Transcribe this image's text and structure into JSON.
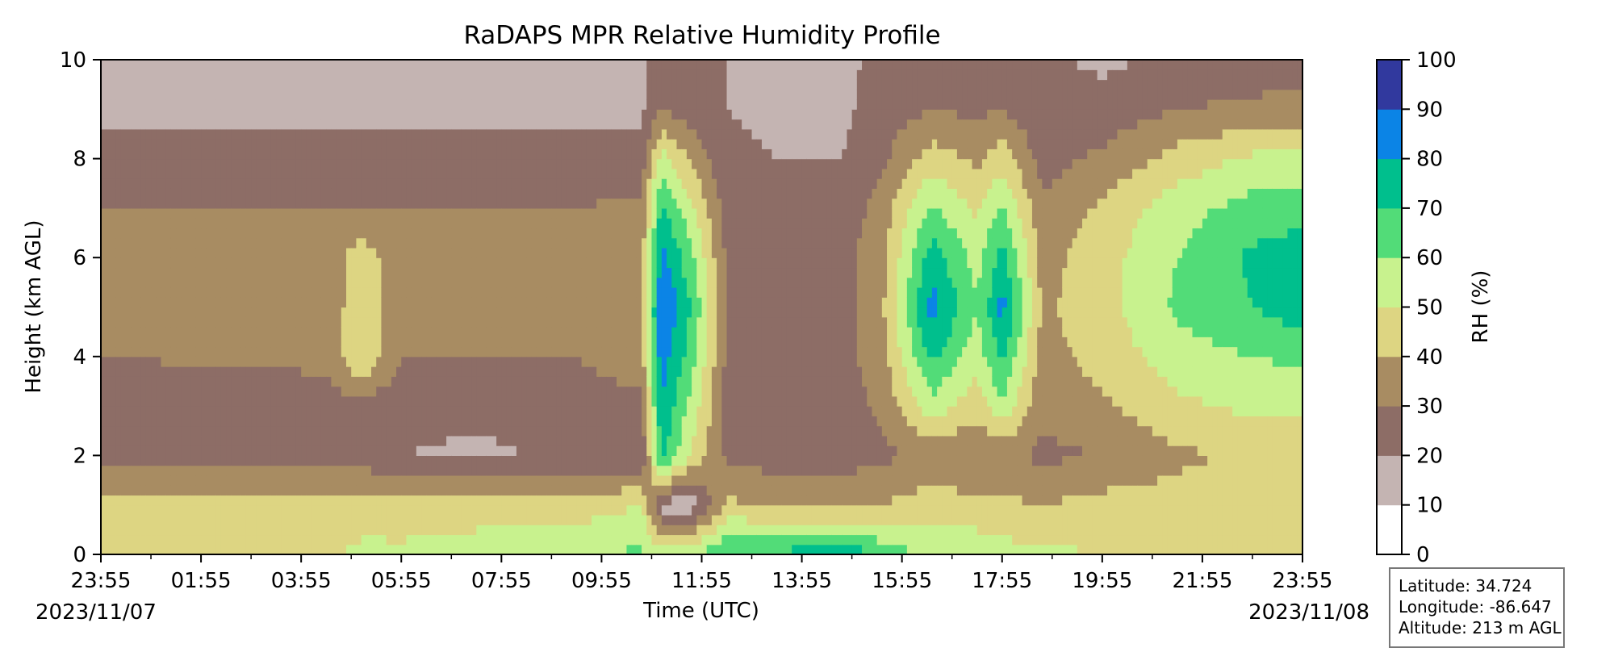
{
  "chart_data": {
    "type": "heatmap",
    "title": "RaDAPS MPR Relative Humidity Profile",
    "xlabel": "Time (UTC)",
    "ylabel": "Height (km AGL)",
    "x_ticks": [
      "23:55",
      "01:55",
      "03:55",
      "05:55",
      "07:55",
      "09:55",
      "11:55",
      "13:55",
      "15:55",
      "17:55",
      "19:55",
      "21:55",
      "23:55"
    ],
    "date_start": "2023/11/07",
    "date_end": "2023/11/08",
    "y_ticks": [
      "0",
      "2",
      "4",
      "6",
      "8",
      "10"
    ],
    "ylim": [
      0,
      10
    ],
    "colorbar": {
      "label": "RH (%)",
      "ticks": [
        "0",
        "10",
        "20",
        "30",
        "40",
        "50",
        "60",
        "70",
        "80",
        "90",
        "100"
      ],
      "levels": [
        0,
        10,
        20,
        30,
        40,
        50,
        60,
        70,
        80,
        90,
        100
      ],
      "colors": [
        "#ffffff",
        "#c4b4b2",
        "#8d6d66",
        "#a88c62",
        "#ddd582",
        "#c8f28e",
        "#52dc78",
        "#00bf8d",
        "#0b84e6",
        "#31399e"
      ]
    },
    "x_hours": [
      0,
      2,
      4,
      6,
      8,
      10,
      12,
      14,
      16,
      18,
      20,
      22,
      24
    ],
    "columns": [
      {
        "t": 0.0,
        "rh": [
          47,
          44,
          25,
          25,
          30,
          30,
          33,
          30,
          22,
          18,
          18
        ]
      },
      {
        "t": 4.5,
        "rh": [
          48,
          45,
          25,
          26,
          32,
          32,
          34,
          30,
          22,
          18,
          18
        ]
      },
      {
        "t": 5.2,
        "rh": [
          52,
          46,
          24,
          26,
          50,
          48,
          46,
          30,
          22,
          18,
          18
        ]
      },
      {
        "t": 6.0,
        "rh": [
          52,
          45,
          20,
          24,
          30,
          31,
          33,
          30,
          22,
          18,
          18
        ]
      },
      {
        "t": 7.5,
        "rh": [
          55,
          45,
          18,
          22,
          30,
          32,
          33,
          30,
          22,
          18,
          18
        ]
      },
      {
        "t": 9.5,
        "rh": [
          58,
          45,
          22,
          25,
          30,
          32,
          33,
          30,
          24,
          18,
          18
        ]
      },
      {
        "t": 10.8,
        "rh": [
          62,
          50,
          20,
          28,
          35,
          36,
          36,
          32,
          24,
          18,
          18
        ]
      },
      {
        "t": 11.2,
        "rh": [
          55,
          15,
          72,
          80,
          86,
          91,
          84,
          72,
          55,
          30,
          25
        ]
      },
      {
        "t": 11.8,
        "rh": [
          58,
          15,
          48,
          56,
          64,
          70,
          62,
          52,
          38,
          24,
          22
        ]
      },
      {
        "t": 12.5,
        "rh": [
          72,
          42,
          28,
          26,
          28,
          30,
          28,
          25,
          22,
          20,
          20
        ]
      },
      {
        "t": 13.5,
        "rh": [
          72,
          38,
          25,
          25,
          26,
          26,
          26,
          24,
          20,
          18,
          18
        ]
      },
      {
        "t": 14.8,
        "rh": [
          78,
          38,
          25,
          25,
          26,
          26,
          26,
          24,
          20,
          18,
          18
        ]
      },
      {
        "t": 15.6,
        "rh": [
          68,
          40,
          28,
          32,
          36,
          38,
          37,
          34,
          28,
          24,
          22
        ]
      },
      {
        "t": 16.6,
        "rh": [
          56,
          46,
          32,
          56,
          72,
          85,
          75,
          62,
          45,
          30,
          25
        ]
      },
      {
        "t": 17.5,
        "rh": [
          58,
          42,
          30,
          44,
          54,
          60,
          56,
          48,
          38,
          28,
          24
        ]
      },
      {
        "t": 18.0,
        "rh": [
          54,
          42,
          32,
          58,
          72,
          84,
          74,
          62,
          46,
          30,
          25
        ]
      },
      {
        "t": 18.8,
        "rh": [
          52,
          40,
          28,
          32,
          36,
          38,
          36,
          32,
          26,
          22,
          22
        ]
      },
      {
        "t": 20.0,
        "rh": [
          50,
          44,
          30,
          38,
          44,
          46,
          46,
          42,
          32,
          24,
          18
        ]
      },
      {
        "t": 21.5,
        "rh": [
          46,
          44,
          38,
          48,
          55,
          62,
          60,
          56,
          44,
          30,
          22
        ]
      },
      {
        "t": 23.0,
        "rh": [
          45,
          44,
          42,
          52,
          60,
          70,
          72,
          64,
          52,
          32,
          24
        ]
      },
      {
        "t": 24.0,
        "rh": [
          44,
          44,
          42,
          52,
          62,
          76,
          76,
          66,
          54,
          34,
          26
        ]
      }
    ],
    "info": {
      "latitude": "Latitude: 34.724",
      "longitude": "Longitude: -86.647",
      "altitude": "Altitude: 213 m AGL"
    }
  }
}
